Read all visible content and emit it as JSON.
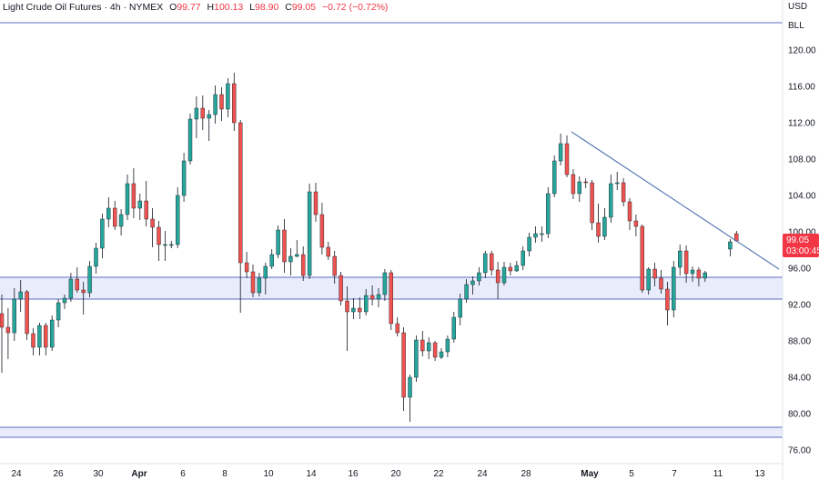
{
  "header": {
    "title": "Light Crude Oil Futures · 4h · NYMEX",
    "open_label": "O",
    "open": "99.77",
    "high_label": "H",
    "high": "100.13",
    "low_label": "L",
    "low": "98.90",
    "close_label": "C",
    "close": "99.05",
    "change": "−0.72 (−0.72%)"
  },
  "units": {
    "currency": "USD",
    "unit": "BLL"
  },
  "price_tag": {
    "price": "99.05",
    "countdown": "03:00:45"
  },
  "colors": {
    "bull": "#26a69a",
    "bear": "#ef5350",
    "zone_fill": "#e8ecfb",
    "zone_line": "#5c6bc0",
    "trendline": "#5b7bb5",
    "tag": "#f23645",
    "axis_line": "#e0e3eb"
  },
  "chart_data": {
    "type": "candlestick",
    "title": "Light Crude Oil Futures",
    "y_ticks": [
      76.0,
      80.0,
      84.0,
      88.0,
      92.0,
      96.0,
      100.0,
      104.0,
      108.0,
      112.0,
      116.0,
      120.0
    ],
    "x_ticks": [
      {
        "label": "24",
        "bold": false
      },
      {
        "label": "26",
        "bold": false
      },
      {
        "label": "30",
        "bold": false
      },
      {
        "label": "Apr",
        "bold": true
      },
      {
        "label": "6",
        "bold": false
      },
      {
        "label": "8",
        "bold": false
      },
      {
        "label": "10",
        "bold": false
      },
      {
        "label": "14",
        "bold": false
      },
      {
        "label": "16",
        "bold": false
      },
      {
        "label": "20",
        "bold": false
      },
      {
        "label": "22",
        "bold": false
      },
      {
        "label": "24",
        "bold": false
      },
      {
        "label": "28",
        "bold": false
      },
      {
        "label": "May",
        "bold": true
      },
      {
        "label": "5",
        "bold": false
      },
      {
        "label": "7",
        "bold": false
      },
      {
        "label": "11",
        "bold": false
      },
      {
        "label": "13",
        "bold": false
      }
    ],
    "ylim": [
      74.5,
      125.5
    ],
    "zones": [
      {
        "low": 92.6,
        "high": 95.0
      },
      {
        "low": 77.4,
        "high": 78.5
      }
    ],
    "resistance_line": 123.0,
    "trendline": {
      "from": [
        0,
        111.0
      ],
      "to": [
        25.0,
        96.8
      ]
    },
    "candles": [
      [
        91.0,
        93.1,
        84.5,
        89.5
      ],
      [
        89.5,
        91.6,
        86.0,
        88.9
      ],
      [
        88.9,
        93.8,
        88.0,
        92.6
      ],
      [
        92.6,
        94.7,
        91.2,
        93.4
      ],
      [
        93.4,
        93.6,
        88.1,
        88.8
      ],
      [
        88.8,
        89.4,
        86.4,
        87.3
      ],
      [
        87.3,
        90.0,
        86.4,
        89.7
      ],
      [
        89.7,
        90.0,
        86.4,
        87.3
      ],
      [
        87.3,
        90.8,
        86.9,
        90.3
      ],
      [
        90.3,
        92.6,
        89.5,
        92.2
      ],
      [
        92.2,
        93.1,
        91.5,
        92.7
      ],
      [
        92.7,
        95.5,
        92.3,
        94.8
      ],
      [
        94.8,
        96.1,
        93.3,
        93.6
      ],
      [
        93.6,
        94.5,
        90.9,
        93.3
      ],
      [
        93.3,
        96.8,
        92.8,
        96.2
      ],
      [
        96.2,
        98.8,
        95.4,
        98.2
      ],
      [
        98.2,
        102.0,
        97.1,
        101.4
      ],
      [
        101.4,
        103.8,
        100.5,
        102.6
      ],
      [
        102.6,
        103.4,
        100.2,
        100.6
      ],
      [
        100.6,
        102.5,
        99.6,
        101.9
      ],
      [
        101.9,
        106.3,
        101.3,
        105.3
      ],
      [
        105.3,
        107.0,
        101.5,
        102.6
      ],
      [
        102.6,
        104.2,
        101.3,
        103.4
      ],
      [
        103.4,
        105.6,
        100.6,
        101.4
      ],
      [
        101.4,
        102.6,
        98.3,
        100.5
      ],
      [
        100.5,
        101.2,
        96.8,
        98.6
      ],
      [
        98.6,
        100.1,
        96.8,
        98.6
      ],
      [
        98.6,
        99.0,
        98.2,
        98.6
      ],
      [
        98.6,
        104.9,
        98.2,
        104.0
      ],
      [
        104.0,
        108.7,
        103.3,
        107.8
      ],
      [
        107.8,
        113.0,
        107.4,
        112.4
      ],
      [
        112.4,
        114.9,
        110.3,
        113.6
      ],
      [
        113.6,
        115.0,
        111.2,
        112.5
      ],
      [
        112.5,
        113.4,
        110.0,
        112.9
      ],
      [
        112.9,
        116.1,
        111.9,
        115.1
      ],
      [
        115.1,
        115.9,
        112.2,
        113.5
      ],
      [
        113.5,
        116.9,
        112.6,
        116.3
      ],
      [
        116.3,
        117.5,
        111.1,
        112.0
      ],
      [
        112.0,
        112.3,
        91.1,
        96.6
      ],
      [
        96.6,
        97.8,
        94.9,
        95.6
      ],
      [
        95.6,
        96.4,
        92.8,
        93.3
      ],
      [
        93.3,
        95.5,
        92.9,
        94.9
      ],
      [
        94.9,
        96.6,
        93.1,
        96.2
      ],
      [
        96.2,
        98.1,
        95.9,
        97.5
      ],
      [
        97.5,
        100.7,
        97.1,
        100.2
      ],
      [
        100.2,
        101.4,
        95.5,
        96.7
      ],
      [
        96.7,
        98.2,
        95.2,
        97.3
      ],
      [
        97.3,
        99.1,
        97.2,
        97.5
      ],
      [
        97.5,
        98.4,
        94.6,
        95.2
      ],
      [
        95.2,
        105.3,
        94.8,
        104.4
      ],
      [
        104.4,
        105.4,
        101.1,
        101.9
      ],
      [
        101.9,
        103.2,
        97.5,
        98.3
      ],
      [
        98.3,
        98.9,
        96.9,
        97.3
      ],
      [
        97.3,
        97.9,
        94.3,
        95.2
      ],
      [
        95.2,
        95.6,
        91.9,
        92.4
      ],
      [
        92.4,
        94.0,
        86.9,
        91.2
      ],
      [
        91.2,
        92.7,
        90.4,
        91.6
      ],
      [
        91.6,
        92.8,
        90.4,
        91.2
      ],
      [
        91.2,
        93.7,
        90.8,
        93.0
      ],
      [
        93.0,
        94.1,
        91.9,
        92.6
      ],
      [
        92.6,
        93.8,
        91.7,
        93.1
      ],
      [
        93.1,
        95.9,
        92.4,
        95.5
      ],
      [
        95.5,
        95.8,
        89.2,
        89.9
      ],
      [
        89.9,
        90.6,
        88.5,
        88.9
      ],
      [
        88.9,
        89.5,
        80.3,
        81.8
      ],
      [
        81.8,
        84.3,
        79.1,
        84.0
      ],
      [
        84.0,
        88.6,
        83.5,
        88.1
      ],
      [
        88.1,
        89.1,
        86.3,
        86.9
      ],
      [
        86.9,
        88.4,
        86.0,
        87.8
      ],
      [
        87.8,
        88.0,
        85.8,
        86.2
      ],
      [
        86.2,
        87.2,
        86.0,
        86.8
      ],
      [
        86.8,
        88.6,
        86.2,
        88.2
      ],
      [
        88.2,
        91.2,
        87.8,
        90.6
      ],
      [
        90.6,
        93.2,
        89.7,
        92.6
      ],
      [
        92.6,
        94.8,
        92.2,
        94.2
      ],
      [
        94.2,
        95.1,
        93.1,
        94.6
      ],
      [
        94.6,
        96.1,
        94.1,
        95.5
      ],
      [
        95.5,
        97.9,
        94.9,
        97.6
      ],
      [
        97.6,
        97.9,
        95.2,
        95.8
      ],
      [
        95.8,
        96.7,
        92.6,
        94.4
      ],
      [
        94.4,
        96.7,
        94.1,
        96.1
      ],
      [
        96.1,
        96.6,
        95.2,
        95.7
      ],
      [
        95.7,
        96.8,
        95.6,
        96.3
      ],
      [
        96.3,
        98.4,
        95.8,
        97.9
      ],
      [
        97.9,
        99.9,
        97.3,
        99.4
      ],
      [
        99.4,
        100.6,
        98.8,
        99.8
      ],
      [
        99.8,
        100.6,
        98.9,
        99.8
      ],
      [
        99.8,
        104.9,
        99.3,
        104.2
      ],
      [
        104.2,
        108.4,
        103.8,
        107.8
      ],
      [
        107.8,
        110.8,
        107.3,
        109.7
      ],
      [
        109.7,
        110.6,
        106.0,
        106.3
      ],
      [
        106.3,
        106.9,
        103.6,
        104.2
      ],
      [
        104.2,
        106.1,
        103.3,
        105.5
      ],
      [
        105.5,
        105.9,
        104.8,
        105.4
      ],
      [
        105.4,
        105.7,
        100.2,
        101.0
      ],
      [
        101.0,
        103.1,
        98.8,
        99.5
      ],
      [
        99.5,
        102.6,
        99.1,
        101.6
      ],
      [
        101.6,
        106.3,
        101.0,
        105.3
      ],
      [
        105.3,
        106.6,
        104.6,
        105.4
      ],
      [
        105.4,
        105.9,
        102.8,
        103.3
      ],
      [
        103.3,
        103.7,
        100.2,
        101.2
      ],
      [
        101.2,
        101.9,
        99.5,
        100.6
      ],
      [
        100.6,
        100.8,
        93.3,
        93.6
      ],
      [
        93.6,
        96.1,
        93.1,
        95.9
      ],
      [
        95.9,
        96.6,
        94.0,
        94.9
      ],
      [
        94.9,
        95.8,
        93.2,
        93.7
      ],
      [
        93.7,
        94.5,
        89.7,
        91.4
      ],
      [
        91.4,
        96.8,
        90.6,
        96.1
      ],
      [
        96.1,
        98.6,
        95.2,
        97.9
      ],
      [
        97.9,
        98.5,
        94.4,
        95.4
      ],
      [
        95.4,
        96.2,
        94.5,
        95.8
      ],
      [
        95.8,
        96.1,
        94.0,
        94.9
      ],
      [
        94.9,
        95.7,
        94.5,
        95.5
      ],
      [
        98.1,
        99.2,
        97.3,
        98.9
      ],
      [
        99.8,
        100.1,
        98.9,
        99.0
      ]
    ]
  }
}
